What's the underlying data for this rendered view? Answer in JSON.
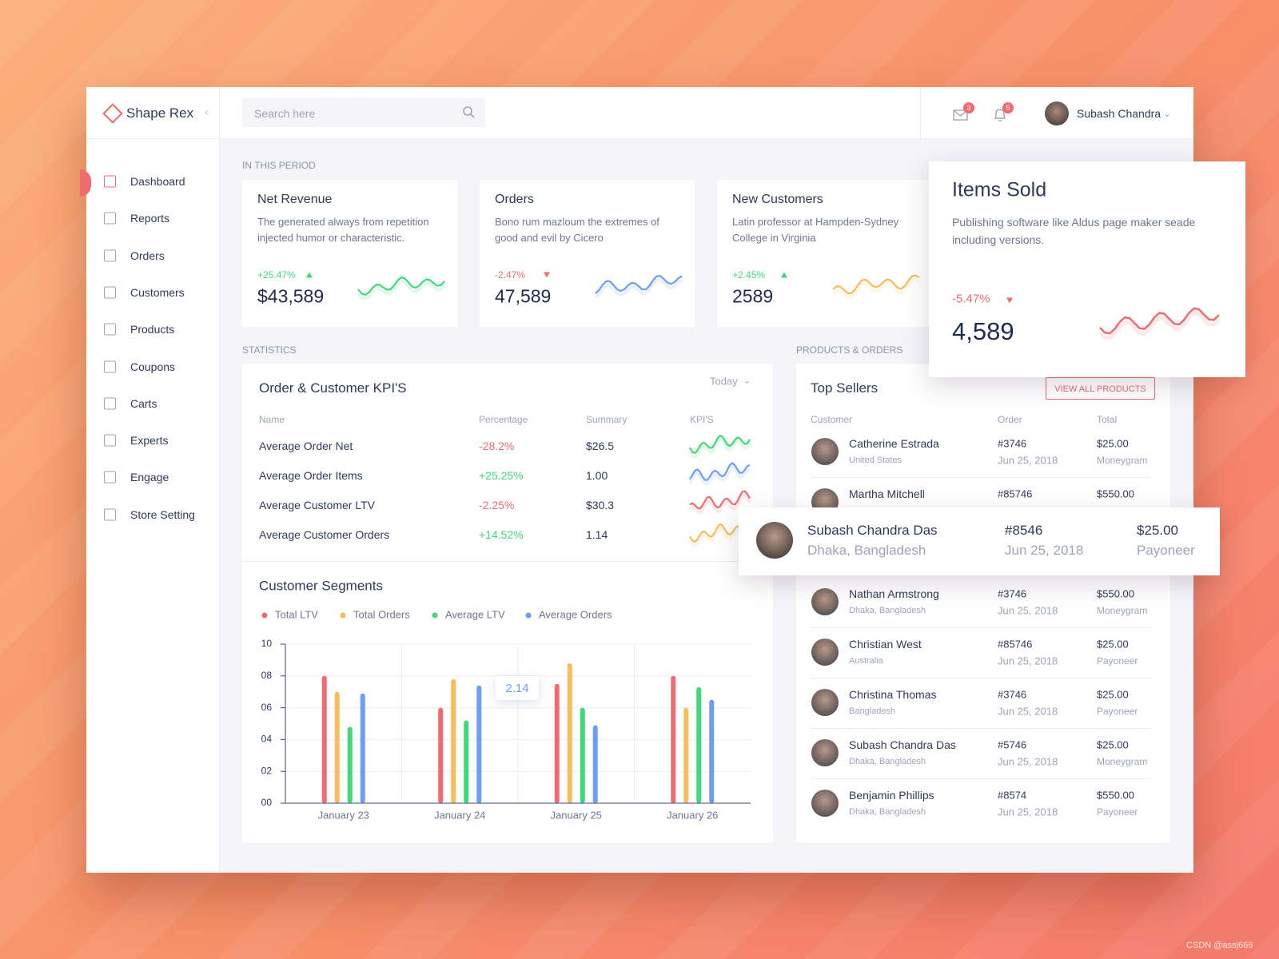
{
  "brand": "Shape Rex",
  "search_placeholder": "Search here",
  "header": {
    "mail_count": "3",
    "bell_count": "5",
    "user": "Subash Chandra"
  },
  "nav": [
    "Dashboard",
    "Reports",
    "Orders",
    "Customers",
    "Products",
    "Coupons",
    "Carts",
    "Experts",
    "Engage",
    "Store Setting"
  ],
  "period_label": "IN THIS PERIOD",
  "cards": [
    {
      "title": "Net Revenue",
      "description": "The generated always from repetition injected humor or characteristic.",
      "change": "+25.47%",
      "value": "$43,589"
    },
    {
      "title": "Orders",
      "description": "Bono rum mazloum the extremes of good and evil by Cicero",
      "change": "-2.47%",
      "value": "47,589"
    },
    {
      "title": "New Customers",
      "description": "Latin professor at Hampden-Sydney College in Virginia",
      "change": "+2.45%",
      "value": "2589"
    },
    {
      "title": "Items Sold",
      "description": "Publishing software like Aldus page maker seade including versions.",
      "change": "-5.47%",
      "value": "4,589"
    }
  ],
  "statistics_label": "STATISTICS",
  "kpi": {
    "title": "Order & Customer KPI'S",
    "filter": "Today",
    "columns": [
      "Name",
      "Percentage",
      "Summary",
      "KPI'S"
    ],
    "rows": [
      [
        "Average Order Net",
        "-28.2%",
        "$26.5"
      ],
      [
        "Average Order Items",
        "+25.25%",
        "1.00"
      ],
      [
        "Average Customer LTV",
        "-2.25%",
        "$30.3"
      ],
      [
        "Average Customer Orders",
        "+14.52%",
        "1.14"
      ]
    ]
  },
  "chart_data": {
    "type": "bar",
    "title": "Customer Segments",
    "categories": [
      "January 23",
      "January 24",
      "January 25",
      "January 26"
    ],
    "series": [
      {
        "name": "Total LTV",
        "color": "#f06a6f",
        "values": [
          8.0,
          6.0,
          7.5,
          8.0
        ]
      },
      {
        "name": "Total Orders",
        "color": "#f9bc5b",
        "values": [
          7.0,
          7.8,
          8.8,
          6.0
        ]
      },
      {
        "name": "Average LTV",
        "color": "#3fd87a",
        "values": [
          4.8,
          5.2,
          6.0,
          7.3
        ]
      },
      {
        "name": "Average Orders",
        "color": "#6d9ef7",
        "values": [
          6.9,
          7.4,
          4.9,
          6.5
        ]
      }
    ],
    "ylim": [
      0,
      10
    ],
    "yticks": [
      {
        "value": 0,
        "label": "00"
      },
      {
        "value": 2,
        "label": "02"
      },
      {
        "value": 4,
        "label": "04"
      },
      {
        "value": 6,
        "label": "06"
      },
      {
        "value": 8,
        "label": "08"
      },
      10
    ],
    "grid": true,
    "annotation": "2.14"
  },
  "products_label": "PRODUCTS & ORDERS",
  "top_sellers": {
    "title": "Top Sellers",
    "button": "VIEW ALL PRODUCTS",
    "columns": [
      "Customer",
      "Order",
      "Total"
    ],
    "rows": [
      {
        "name": "Catherine Estrada",
        "location": "United States",
        "order": "#3746",
        "date": "Jun 25, 2018",
        "total": "$25.00",
        "method": "Moneygram"
      },
      {
        "name": "Martha Mitchell",
        "order": "#85746",
        "total": "$550.00"
      },
      {
        "name": "Nathan Armstrong",
        "location": "Dhaka, Bangladesh",
        "order": "#3746",
        "date": "Jun 25, 2018",
        "total": "$550.00",
        "method": "Moneygram"
      },
      {
        "name": "Christian West",
        "location": "Australia",
        "order": "#85746",
        "date": "Jun 25, 2018",
        "total": "$25.00",
        "method": "Payoneer"
      },
      {
        "name": "Christina Thomas",
        "location": "Bangladesh",
        "order": "#3746",
        "date": "Jun 25, 2018",
        "total": "$25.00",
        "method": "Payoneer"
      },
      {
        "name": "Subash Chandra Das",
        "location": "Dhaka, Bangladesh",
        "order": "#5746",
        "date": "Jun 25, 2018",
        "total": "$25.00",
        "method": "Moneygram"
      },
      {
        "name": "Benjamin Phillips",
        "location": "Dhaka, Bangladesh",
        "order": "#8574",
        "date": "Jun 25, 2018",
        "total": "$550.00",
        "method": "Payoneer"
      }
    ]
  },
  "highlight": {
    "name": "Subash Chandra Das",
    "location": "Dhaka, Bangladesh",
    "order": "#8546",
    "date": "Jun 25, 2018",
    "total": "$25.00",
    "method": "Payoneer"
  },
  "watermark": "CSDN @assj666"
}
